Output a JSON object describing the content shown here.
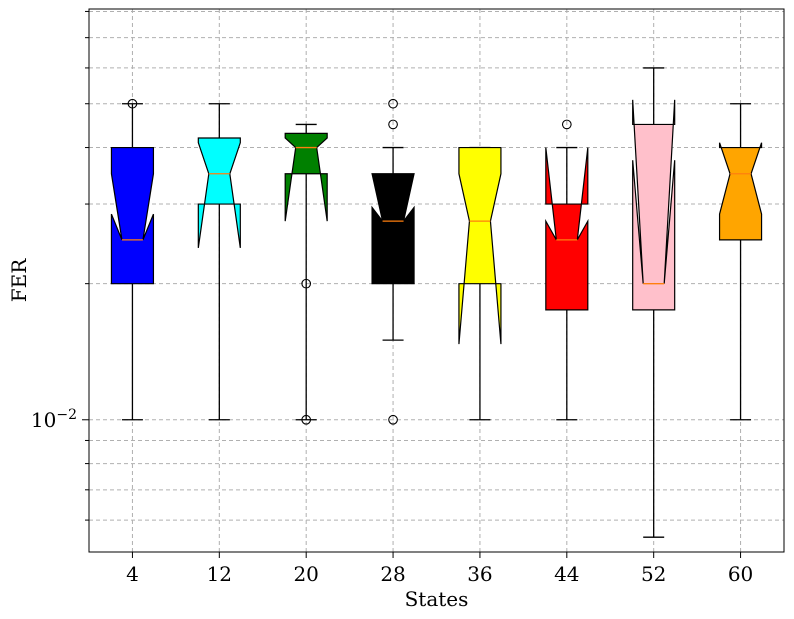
{
  "chart_data": {
    "type": "box",
    "xlabel": "States",
    "ylabel": "FER",
    "yscale": "log",
    "ylim": [
      0.0051,
      0.081
    ],
    "ytick_labels": [
      {
        "value": 0.01,
        "label": "10",
        "exponent": "−2"
      }
    ],
    "grid": true,
    "categories": [
      "4",
      "12",
      "20",
      "28",
      "36",
      "44",
      "52",
      "60"
    ],
    "boxes": [
      {
        "category": "4",
        "color": "#0000ff",
        "whislo": 0.01,
        "q1": 0.02,
        "med": 0.025,
        "q3": 0.04,
        "whishi": 0.05,
        "notch_lo": 0.0285,
        "notch_hi": 0.035,
        "fliers": [
          0.05
        ]
      },
      {
        "category": "12",
        "color": "#00ffff",
        "whislo": 0.01,
        "q1": 0.03,
        "med": 0.035,
        "q3": 0.042,
        "whishi": 0.05,
        "notch_lo": 0.024,
        "notch_hi": 0.041,
        "fliers": []
      },
      {
        "category": "20",
        "color": "#008000",
        "whislo": 0.01,
        "q1": 0.035,
        "med": 0.04,
        "q3": 0.043,
        "whishi": 0.045,
        "notch_lo": 0.0275,
        "notch_hi": 0.042,
        "fliers": [
          0.02,
          0.01
        ]
      },
      {
        "category": "28",
        "color": "#000000",
        "whislo": 0.015,
        "q1": 0.02,
        "med": 0.0275,
        "q3": 0.035,
        "whishi": 0.04,
        "notch_lo": 0.0295,
        "notch_hi": 0.035,
        "fliers": [
          0.05,
          0.045,
          0.01
        ]
      },
      {
        "category": "36",
        "color": "#ffff00",
        "whislo": 0.01,
        "q1": 0.02,
        "med": 0.0275,
        "q3": 0.04,
        "whishi": 0.04,
        "notch_lo": 0.0147,
        "notch_hi": 0.035,
        "fliers": []
      },
      {
        "category": "44",
        "color": "#ff0000",
        "whislo": 0.01,
        "q1": 0.0175,
        "med": 0.025,
        "q3": 0.03,
        "whishi": 0.04,
        "notch_lo": 0.0275,
        "notch_hi": 0.04,
        "fliers": [
          0.045
        ]
      },
      {
        "category": "52",
        "color": "#ffc0cb",
        "whislo": 0.0055,
        "q1": 0.0175,
        "med": 0.02,
        "q3": 0.045,
        "whishi": 0.06,
        "notch_lo": 0.0375,
        "notch_hi": 0.051,
        "fliers": []
      },
      {
        "category": "60",
        "color": "#ffa500",
        "whislo": 0.01,
        "q1": 0.025,
        "med": 0.035,
        "q3": 0.04,
        "whishi": 0.05,
        "notch_lo": 0.0285,
        "notch_hi": 0.041,
        "fliers": []
      }
    ],
    "median_color": "#ff7f0e",
    "box_edge_color": "#000000",
    "grid_color": "#b0b0b0"
  }
}
